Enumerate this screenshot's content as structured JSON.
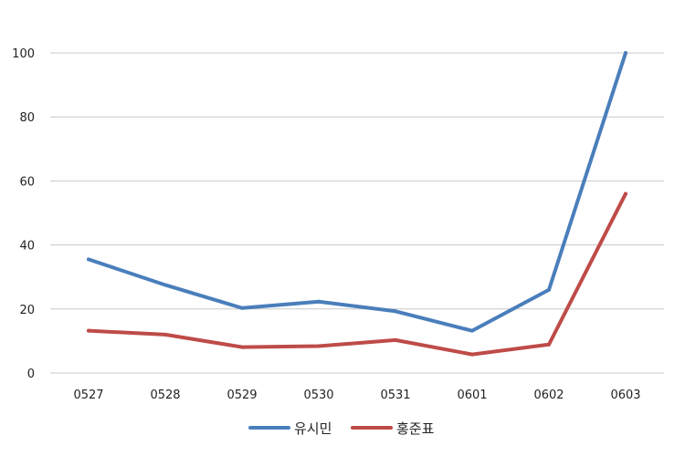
{
  "chart_data": {
    "type": "line",
    "title": "",
    "xlabel": "",
    "ylabel": "",
    "categories": [
      "0527",
      "0528",
      "0529",
      "0530",
      "0531",
      "0601",
      "0602",
      "0603"
    ],
    "ylim": [
      0,
      100
    ],
    "yticks": [
      "0",
      "20",
      "40",
      "60",
      "80",
      "100"
    ],
    "grid": true,
    "legend_position": "bottom",
    "series": [
      {
        "name": "유시민",
        "color": "#4a7ebb",
        "values": [
          35.5,
          27.5,
          20.3,
          22.3,
          19.3,
          13.2,
          26.0,
          100
        ]
      },
      {
        "name": "홍준표",
        "color": "#be4b48",
        "values": [
          13.2,
          12.0,
          8.1,
          8.4,
          10.3,
          5.8,
          8.9,
          56
        ]
      }
    ]
  }
}
